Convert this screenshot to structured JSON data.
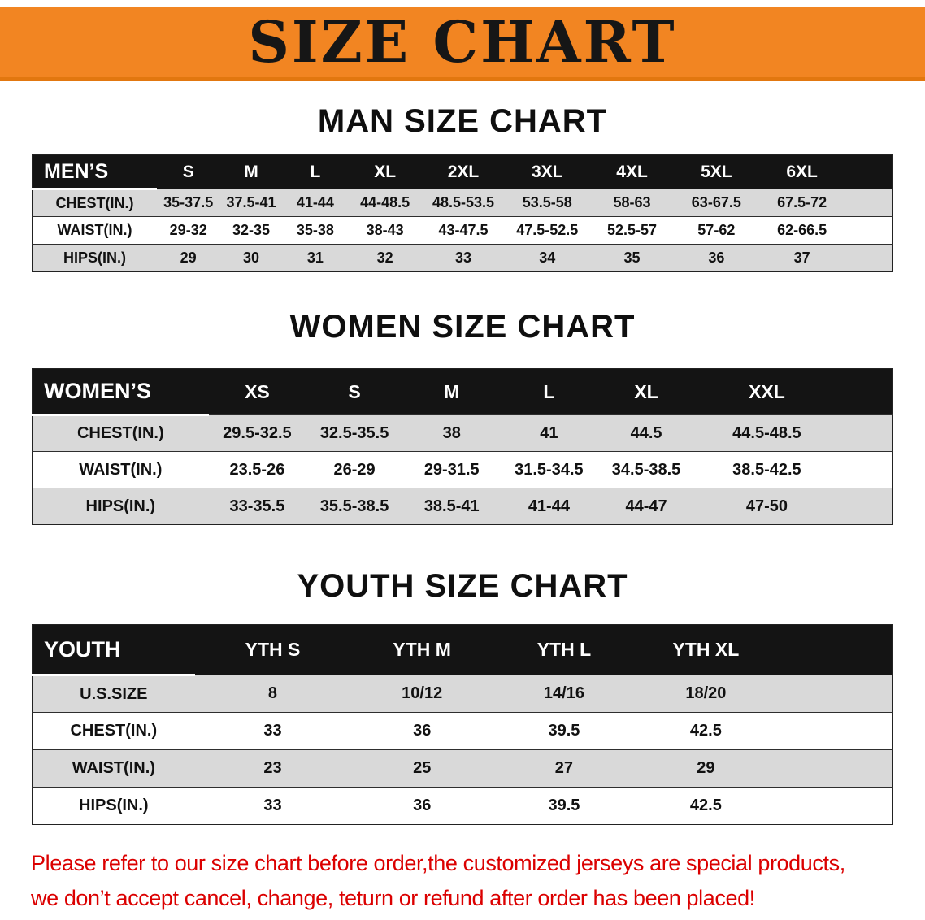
{
  "banner": {
    "title": "SIZE CHART"
  },
  "men": {
    "heading": "MAN SIZE CHART",
    "table": {
      "header": [
        "MEN’S",
        "S",
        "M",
        "L",
        "XL",
        "2XL",
        "3XL",
        "4XL",
        "5XL",
        "6XL"
      ],
      "rows": [
        [
          "CHEST(IN.)",
          "35-37.5",
          "37.5-41",
          "41-44",
          "44-48.5",
          "48.5-53.5",
          "53.5-58",
          "58-63",
          "63-67.5",
          "67.5-72"
        ],
        [
          "WAIST(IN.)",
          "29-32",
          "32-35",
          "35-38",
          "38-43",
          "43-47.5",
          "47.5-52.5",
          "52.5-57",
          "57-62",
          "62-66.5"
        ],
        [
          "HIPS(IN.)",
          "29",
          "30",
          "31",
          "32",
          "33",
          "34",
          "35",
          "36",
          "37"
        ]
      ]
    }
  },
  "women": {
    "heading": "WOMEN SIZE CHART",
    "table": {
      "header": [
        "WOMEN’S",
        "XS",
        "S",
        "M",
        "L",
        "XL",
        "XXL"
      ],
      "rows": [
        [
          "CHEST(IN.)",
          "29.5-32.5",
          "32.5-35.5",
          "38",
          "41",
          "44.5",
          "44.5-48.5"
        ],
        [
          "WAIST(IN.)",
          "23.5-26",
          "26-29",
          "29-31.5",
          "31.5-34.5",
          "34.5-38.5",
          "38.5-42.5"
        ],
        [
          "HIPS(IN.)",
          "33-35.5",
          "35.5-38.5",
          "38.5-41",
          "41-44",
          "44-47",
          "47-50"
        ]
      ]
    }
  },
  "youth": {
    "heading": "YOUTH SIZE CHART",
    "table": {
      "header": [
        "YOUTH",
        "YTH S",
        "YTH M",
        "YTH L",
        "YTH XL"
      ],
      "rows": [
        [
          "U.S.SIZE",
          "8",
          "10/12",
          "14/16",
          "18/20"
        ],
        [
          "CHEST(IN.)",
          "33",
          "36",
          "39.5",
          "42.5"
        ],
        [
          "WAIST(IN.)",
          "23",
          "25",
          "27",
          "29"
        ],
        [
          "HIPS(IN.)",
          "33",
          "36",
          "39.5",
          "42.5"
        ]
      ]
    }
  },
  "footer": {
    "line1": "Please refer to our size chart before order,the customized jerseys are special products,",
    "line2": "we don’t accept cancel, change, teturn or refund after order has been placed!"
  },
  "colors": {
    "banner_bg": "#F28522",
    "table_header_bg": "#141414",
    "row_stripe": "#D9D9D9",
    "disclaimer_red": "#DB0000"
  }
}
